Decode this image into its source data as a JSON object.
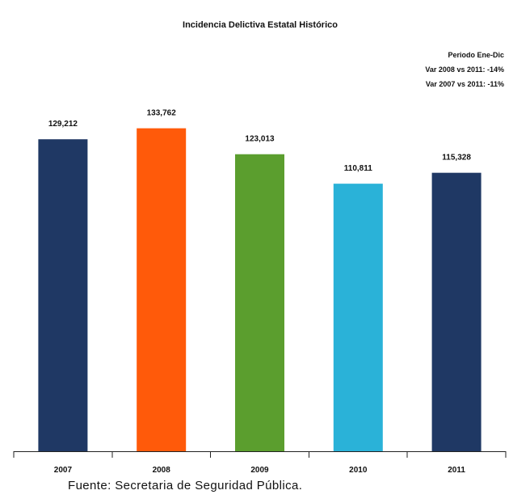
{
  "chart_data": {
    "type": "bar",
    "title": "Incidencia Delictiva Estatal Histórico",
    "annotations": [
      "Periodo Ene-Dic",
      "Var 2008 vs 2011: -14%",
      "Var 2007 vs 2011: -11%"
    ],
    "categories": [
      "2007",
      "2008",
      "2009",
      "2010",
      "2011"
    ],
    "values": [
      129212,
      133762,
      123013,
      110811,
      115328
    ],
    "value_labels": [
      "129,212",
      "133,762",
      "123,013",
      "110,811",
      "115,328"
    ],
    "colors": [
      "#1f3864",
      "#ff5a0a",
      "#5b9e2e",
      "#2ab2d8",
      "#1f3864"
    ],
    "ylim": [
      0,
      140000
    ],
    "grid": false,
    "legend": "none",
    "xlabel": "",
    "ylabel": ""
  },
  "footer": {
    "source": "Fuente: Secretaria de Seguridad Pública."
  }
}
